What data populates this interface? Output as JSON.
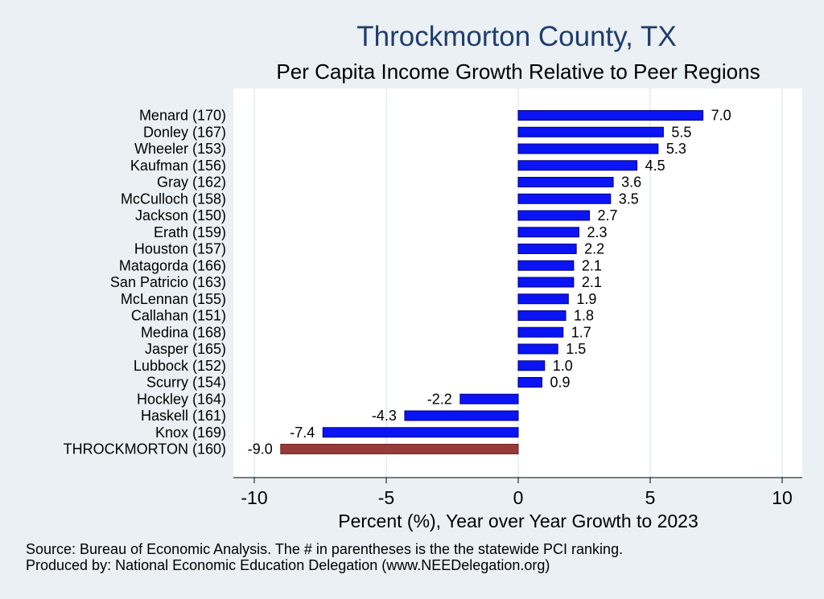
{
  "chart_data": {
    "type": "bar",
    "orientation": "horizontal",
    "title": "Throckmorton County, TX",
    "subtitle": "Per Capita Income Growth Relative to Peer Regions",
    "xlabel": "Percent (%), Year over Year Growth to 2023",
    "ylabel": "",
    "xlim": [
      -10.8,
      10.8
    ],
    "xticks": [
      -10,
      -5,
      0,
      5,
      10
    ],
    "xtick_labels": [
      "-10",
      "-5",
      "0",
      "5",
      "10"
    ],
    "grid": true,
    "categories": [
      "Menard (170)",
      "Donley (167)",
      "Wheeler (153)",
      "Kaufman (156)",
      "Gray (162)",
      "McCulloch (158)",
      "Jackson (150)",
      "Erath (159)",
      "Houston (157)",
      "Matagorda (166)",
      "San Patricio (163)",
      "McLennan (155)",
      "Callahan (151)",
      "Medina (168)",
      "Jasper (165)",
      "Lubbock (152)",
      "Scurry (154)",
      "Hockley (164)",
      "Haskell (161)",
      "Knox (169)",
      "THROCKMORTON (160)"
    ],
    "values": [
      7.0,
      5.5,
      5.3,
      4.5,
      3.6,
      3.5,
      2.7,
      2.3,
      2.2,
      2.1,
      2.1,
      1.9,
      1.8,
      1.7,
      1.5,
      1.0,
      0.9,
      -2.2,
      -4.3,
      -7.4,
      -9.0
    ],
    "value_labels": [
      "7.0",
      "5.5",
      "5.3",
      "4.5",
      "3.6",
      "3.5",
      "2.7",
      "2.3",
      "2.2",
      "2.1",
      "2.1",
      "1.9",
      "1.8",
      "1.7",
      "1.5",
      "1.0",
      "0.9",
      "-2.2",
      "-4.3",
      "-7.4",
      "-9.0"
    ],
    "highlight_index": 20,
    "colors": {
      "bar": "#0a14f5",
      "highlight": "#973a3a",
      "plot_bg": "#ffffff",
      "page_bg": "#eaf0f3",
      "grid": "#e3ecf0",
      "title": "#1f3d6d"
    }
  },
  "footer": {
    "source": "Source: Bureau of Economic Analysis. The # in parentheses is the the statewide PCI ranking.",
    "produced_by": "Produced by: National Economic Education Delegation (www.NEEDelegation.org)"
  }
}
